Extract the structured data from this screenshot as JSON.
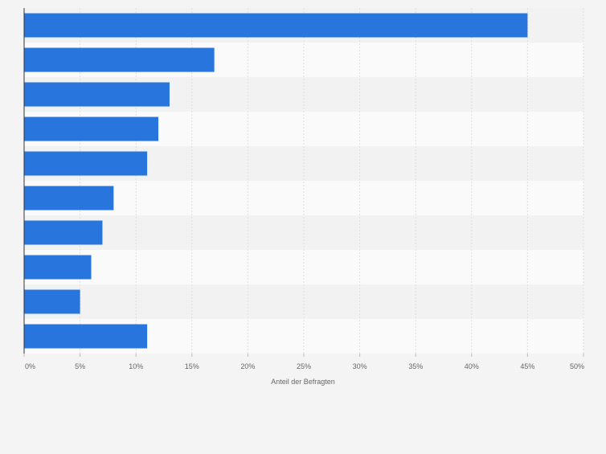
{
  "chart_data": {
    "type": "bar",
    "orientation": "horizontal",
    "categories": [
      "",
      "",
      "",
      "",
      "",
      "",
      "",
      "",
      "",
      ""
    ],
    "values": [
      45,
      17,
      13,
      12,
      11,
      8,
      7,
      6,
      5,
      11
    ],
    "title": "",
    "xlabel": "Anteil der Befragten",
    "ylabel": "",
    "xlim": [
      0,
      50
    ],
    "x_ticks": [
      0,
      5,
      10,
      15,
      20,
      25,
      30,
      35,
      40,
      45,
      50
    ],
    "x_tick_labels": [
      "0%",
      "5%",
      "10%",
      "15%",
      "20%",
      "25%",
      "30%",
      "35%",
      "40%",
      "45%",
      "50%"
    ],
    "grid": true,
    "legend": "none",
    "colors": {
      "bar": "#2876dd",
      "band_light": "#fafafa",
      "band_dark": "#f2f2f2",
      "grid": "#dedede",
      "axis": "#333333",
      "text": "#666666"
    }
  }
}
